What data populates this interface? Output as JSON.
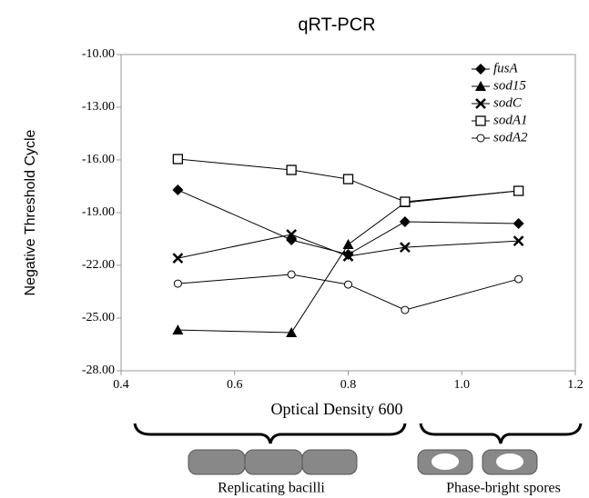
{
  "chart_data": {
    "type": "line",
    "title": "qRT-PCR",
    "x_label": "Optical Density 600",
    "y_label": "Negative Threshold Cycle",
    "x": [
      0.5,
      0.7,
      0.8,
      0.9,
      1.1
    ],
    "series": [
      {
        "name": "fusA",
        "color": "#000000",
        "marker": "diamond",
        "values": [
          -17.71,
          -20.55,
          -21.38,
          -19.52,
          -19.62
        ]
      },
      {
        "name": "sod15",
        "color": "#000000",
        "marker": "triangle",
        "values": [
          -25.68,
          -25.83,
          -20.81,
          -18.43,
          -17.76
        ]
      },
      {
        "name": "sodC",
        "color": "#000000",
        "marker": "x",
        "values": [
          -21.59,
          -20.24,
          -21.48,
          -20.97,
          -20.61
        ]
      },
      {
        "name": "sodA1",
        "color": "#000000",
        "marker": "square-open",
        "values": [
          -15.95,
          -16.57,
          -17.09,
          -18.38,
          -17.76
        ]
      },
      {
        "name": "sodA2",
        "color": "#000000",
        "marker": "circle-open",
        "values": [
          -23.04,
          -22.52,
          -23.09,
          -24.54,
          -22.78
        ]
      }
    ],
    "xlim": [
      0.4,
      1.2
    ],
    "xticks": [
      0.4,
      0.6,
      0.8,
      {
        "value": 1,
        "label": "1.0"
      },
      1.2
    ],
    "ylim": [
      -28,
      -10
    ],
    "yticks": [
      {
        "value": -10,
        "label": "-10.00"
      },
      {
        "value": -13,
        "label": "-13.00"
      },
      {
        "value": -16,
        "label": "-16.00"
      },
      {
        "value": -19,
        "label": "-19.00"
      },
      {
        "value": -22,
        "label": "-22.00"
      },
      {
        "value": -25,
        "label": "-25.00"
      },
      {
        "value": -28,
        "label": "-28.00"
      }
    ],
    "legend": "top-right",
    "annotations": [
      "Replicating bacilli",
      "Phase-bright spores"
    ]
  }
}
